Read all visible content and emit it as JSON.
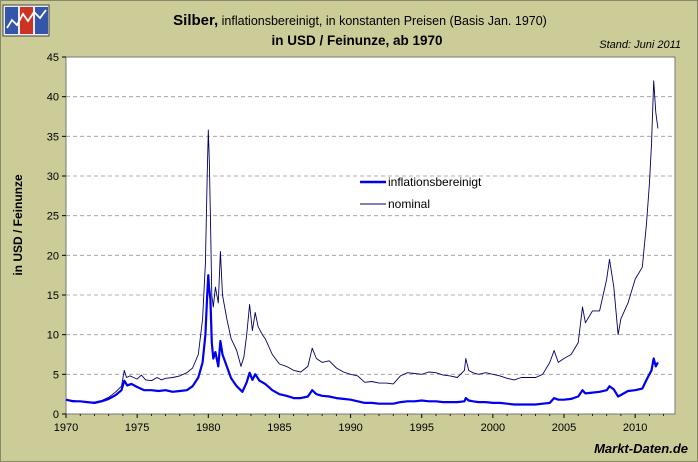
{
  "logo": {
    "colors": [
      "#3355aa",
      "#cc3322",
      "#3355aa"
    ]
  },
  "chart_data": {
    "type": "line",
    "title_bold": "Silber,",
    "title_rest": " inflationsbereinigt, in konstanten Preisen (Basis Jan. 1970)",
    "subtitle": "in USD / Feinunze, ab 1970",
    "stand": "Stand: Juni 2011",
    "ylabel": "in USD / Feinunze",
    "xlabel": "",
    "source": "Markt-Daten.de",
    "xlim": [
      1970,
      2012.8
    ],
    "ylim": [
      0,
      45
    ],
    "yticks": [
      0,
      5,
      10,
      15,
      20,
      25,
      30,
      35,
      40,
      45
    ],
    "xticks": [
      1970,
      1975,
      1980,
      1985,
      1990,
      1995,
      2000,
      2005,
      2010
    ],
    "grid": true,
    "legend": {
      "position": "center-right"
    },
    "series": [
      {
        "name": "inflationsbereinigt",
        "color": "#0000ee",
        "width": 2.2,
        "points": [
          [
            1970,
            1.8
          ],
          [
            1970.5,
            1.6
          ],
          [
            1971,
            1.6
          ],
          [
            1971.5,
            1.5
          ],
          [
            1972,
            1.4
          ],
          [
            1972.5,
            1.6
          ],
          [
            1973,
            1.9
          ],
          [
            1973.5,
            2.4
          ],
          [
            1973.9,
            3.0
          ],
          [
            1974.1,
            4.2
          ],
          [
            1974.3,
            3.6
          ],
          [
            1974.6,
            3.8
          ],
          [
            1975,
            3.4
          ],
          [
            1975.5,
            3.0
          ],
          [
            1976,
            3.0
          ],
          [
            1976.5,
            2.9
          ],
          [
            1977,
            3.0
          ],
          [
            1977.5,
            2.8
          ],
          [
            1978,
            2.9
          ],
          [
            1978.5,
            3.0
          ],
          [
            1978.9,
            3.5
          ],
          [
            1979.3,
            4.6
          ],
          [
            1979.6,
            6.5
          ],
          [
            1979.8,
            10.0
          ],
          [
            1979.92,
            15.0
          ],
          [
            1980.0,
            17.5
          ],
          [
            1980.05,
            16.0
          ],
          [
            1980.15,
            14.5
          ],
          [
            1980.25,
            9.0
          ],
          [
            1980.35,
            7.0
          ],
          [
            1980.5,
            7.8
          ],
          [
            1980.7,
            6.0
          ],
          [
            1980.85,
            9.2
          ],
          [
            1981,
            7.5
          ],
          [
            1981.3,
            6.0
          ],
          [
            1981.6,
            4.5
          ],
          [
            1982,
            3.5
          ],
          [
            1982.4,
            2.8
          ],
          [
            1982.7,
            4.0
          ],
          [
            1982.9,
            5.2
          ],
          [
            1983.1,
            4.3
          ],
          [
            1983.3,
            5.0
          ],
          [
            1983.6,
            4.2
          ],
          [
            1984,
            3.8
          ],
          [
            1984.5,
            3.0
          ],
          [
            1985,
            2.5
          ],
          [
            1985.5,
            2.3
          ],
          [
            1986,
            2.0
          ],
          [
            1986.5,
            2.0
          ],
          [
            1987,
            2.2
          ],
          [
            1987.3,
            3.0
          ],
          [
            1987.6,
            2.5
          ],
          [
            1988,
            2.3
          ],
          [
            1988.5,
            2.2
          ],
          [
            1989,
            2.0
          ],
          [
            1989.5,
            1.9
          ],
          [
            1990,
            1.8
          ],
          [
            1990.5,
            1.6
          ],
          [
            1991,
            1.4
          ],
          [
            1991.5,
            1.4
          ],
          [
            1992,
            1.3
          ],
          [
            1992.5,
            1.3
          ],
          [
            1993,
            1.3
          ],
          [
            1993.5,
            1.5
          ],
          [
            1994,
            1.6
          ],
          [
            1994.5,
            1.6
          ],
          [
            1995,
            1.7
          ],
          [
            1995.5,
            1.6
          ],
          [
            1996,
            1.6
          ],
          [
            1996.5,
            1.5
          ],
          [
            1997,
            1.5
          ],
          [
            1997.5,
            1.5
          ],
          [
            1998,
            1.6
          ],
          [
            1998.1,
            2.0
          ],
          [
            1998.3,
            1.7
          ],
          [
            1998.6,
            1.6
          ],
          [
            1999,
            1.5
          ],
          [
            1999.5,
            1.5
          ],
          [
            2000,
            1.4
          ],
          [
            2000.5,
            1.4
          ],
          [
            2001,
            1.3
          ],
          [
            2001.5,
            1.2
          ],
          [
            2002,
            1.2
          ],
          [
            2002.5,
            1.2
          ],
          [
            2003,
            1.2
          ],
          [
            2003.5,
            1.3
          ],
          [
            2004,
            1.4
          ],
          [
            2004.3,
            2.0
          ],
          [
            2004.6,
            1.8
          ],
          [
            2005,
            1.8
          ],
          [
            2005.5,
            1.9
          ],
          [
            2006,
            2.2
          ],
          [
            2006.3,
            3.0
          ],
          [
            2006.5,
            2.6
          ],
          [
            2007,
            2.7
          ],
          [
            2007.5,
            2.8
          ],
          [
            2008,
            3.0
          ],
          [
            2008.2,
            3.5
          ],
          [
            2008.5,
            3.1
          ],
          [
            2008.8,
            2.2
          ],
          [
            2009,
            2.4
          ],
          [
            2009.5,
            2.9
          ],
          [
            2010,
            3.0
          ],
          [
            2010.5,
            3.2
          ],
          [
            2010.8,
            4.3
          ],
          [
            2011,
            5.0
          ],
          [
            2011.15,
            5.5
          ],
          [
            2011.3,
            7.0
          ],
          [
            2011.45,
            6.0
          ],
          [
            2011.6,
            6.5
          ]
        ]
      },
      {
        "name": "nominal",
        "color": "#000066",
        "width": 0.9,
        "points": [
          [
            1970,
            1.8
          ],
          [
            1970.5,
            1.7
          ],
          [
            1971,
            1.6
          ],
          [
            1971.5,
            1.5
          ],
          [
            1972,
            1.5
          ],
          [
            1972.5,
            1.7
          ],
          [
            1973,
            2.1
          ],
          [
            1973.5,
            2.8
          ],
          [
            1973.9,
            3.5
          ],
          [
            1974.1,
            5.5
          ],
          [
            1974.25,
            4.6
          ],
          [
            1974.5,
            4.8
          ],
          [
            1975,
            4.4
          ],
          [
            1975.3,
            4.9
          ],
          [
            1975.6,
            4.3
          ],
          [
            1976,
            4.2
          ],
          [
            1976.4,
            4.6
          ],
          [
            1976.7,
            4.3
          ],
          [
            1977,
            4.5
          ],
          [
            1977.5,
            4.6
          ],
          [
            1978,
            4.8
          ],
          [
            1978.5,
            5.2
          ],
          [
            1978.9,
            5.8
          ],
          [
            1979.3,
            7.5
          ],
          [
            1979.6,
            12.0
          ],
          [
            1979.8,
            19.0
          ],
          [
            1979.92,
            30.0
          ],
          [
            1980.0,
            35.8
          ],
          [
            1980.07,
            32.0
          ],
          [
            1980.15,
            25.0
          ],
          [
            1980.25,
            15.0
          ],
          [
            1980.35,
            13.5
          ],
          [
            1980.5,
            16.0
          ],
          [
            1980.7,
            14.0
          ],
          [
            1980.85,
            20.5
          ],
          [
            1981,
            15.0
          ],
          [
            1981.3,
            12.0
          ],
          [
            1981.6,
            9.5
          ],
          [
            1982,
            8.0
          ],
          [
            1982.3,
            6.0
          ],
          [
            1982.5,
            7.2
          ],
          [
            1982.7,
            10.0
          ],
          [
            1982.9,
            13.8
          ],
          [
            1983.1,
            10.5
          ],
          [
            1983.3,
            12.8
          ],
          [
            1983.5,
            11.0
          ],
          [
            1983.8,
            10.0
          ],
          [
            1984,
            9.5
          ],
          [
            1984.5,
            7.5
          ],
          [
            1985,
            6.3
          ],
          [
            1985.5,
            6.0
          ],
          [
            1986,
            5.5
          ],
          [
            1986.5,
            5.3
          ],
          [
            1987,
            6.0
          ],
          [
            1987.3,
            8.3
          ],
          [
            1987.6,
            7.0
          ],
          [
            1988,
            6.5
          ],
          [
            1988.5,
            6.7
          ],
          [
            1989,
            5.8
          ],
          [
            1989.5,
            5.3
          ],
          [
            1990,
            5.0
          ],
          [
            1990.5,
            4.8
          ],
          [
            1991,
            4.0
          ],
          [
            1991.5,
            4.1
          ],
          [
            1992,
            3.9
          ],
          [
            1992.5,
            3.9
          ],
          [
            1993,
            3.8
          ],
          [
            1993.5,
            4.8
          ],
          [
            1994,
            5.2
          ],
          [
            1994.5,
            5.1
          ],
          [
            1995,
            5.0
          ],
          [
            1995.5,
            5.3
          ],
          [
            1996,
            5.2
          ],
          [
            1996.5,
            4.9
          ],
          [
            1997,
            4.8
          ],
          [
            1997.5,
            4.6
          ],
          [
            1998,
            5.5
          ],
          [
            1998.1,
            7.0
          ],
          [
            1998.3,
            5.5
          ],
          [
            1998.6,
            5.2
          ],
          [
            1999,
            5.0
          ],
          [
            1999.5,
            5.2
          ],
          [
            2000,
            5.0
          ],
          [
            2000.5,
            4.8
          ],
          [
            2001,
            4.5
          ],
          [
            2001.5,
            4.3
          ],
          [
            2002,
            4.6
          ],
          [
            2002.5,
            4.6
          ],
          [
            2003,
            4.6
          ],
          [
            2003.5,
            5.0
          ],
          [
            2004,
            6.5
          ],
          [
            2004.3,
            8.0
          ],
          [
            2004.6,
            6.5
          ],
          [
            2005,
            7.0
          ],
          [
            2005.5,
            7.5
          ],
          [
            2006,
            9.0
          ],
          [
            2006.3,
            13.5
          ],
          [
            2006.5,
            11.5
          ],
          [
            2007,
            13.0
          ],
          [
            2007.5,
            13.0
          ],
          [
            2008,
            17.0
          ],
          [
            2008.2,
            19.5
          ],
          [
            2008.5,
            16.0
          ],
          [
            2008.8,
            10.0
          ],
          [
            2009,
            12.0
          ],
          [
            2009.5,
            14.0
          ],
          [
            2010,
            17.0
          ],
          [
            2010.5,
            18.5
          ],
          [
            2010.8,
            24.0
          ],
          [
            2011,
            29.0
          ],
          [
            2011.15,
            34.0
          ],
          [
            2011.3,
            42.0
          ],
          [
            2011.45,
            38.0
          ],
          [
            2011.6,
            36.0
          ]
        ]
      }
    ]
  }
}
